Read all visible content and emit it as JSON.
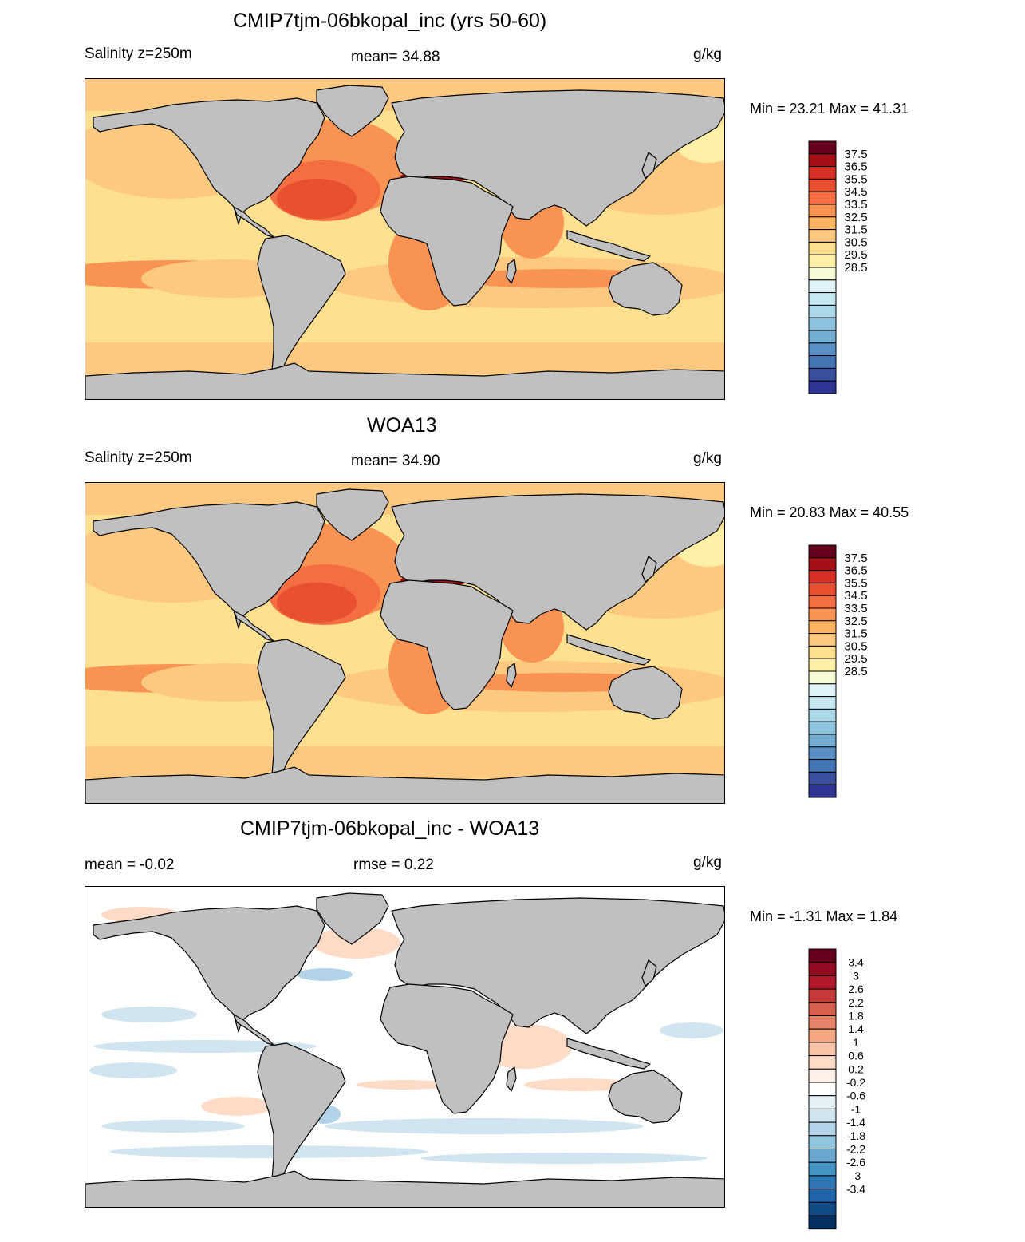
{
  "panels": [
    {
      "title": "CMIP7tjm-06bkopal_inc (yrs 50-60)",
      "left_label": "Salinity z=250m",
      "center_label": "mean=  34.88",
      "right_label": "g/kg",
      "minmax": "Min =  23.21 Max =  41.31",
      "field": "model"
    },
    {
      "title": "WOA13",
      "left_label": "Salinity z=250m",
      "center_label": "mean=  34.90",
      "right_label": "g/kg",
      "minmax": "Min =  20.83 Max =  40.55",
      "field": "obs"
    },
    {
      "title": "CMIP7tjm-06bkopal_inc - WOA13",
      "left_label": "mean =  -0.02",
      "center_label": "rmse =   0.22",
      "right_label": "g/kg",
      "minmax": "Min =  -1.31 Max =   1.84",
      "field": "diff"
    }
  ],
  "colorbars": {
    "salinity": {
      "labels": [
        "37.5",
        "36.5",
        "35.5",
        "34.5",
        "33.5",
        "32.5",
        "31.5",
        "30.5",
        "29.5",
        "28.5"
      ],
      "colors": [
        "#67001f",
        "#a50f15",
        "#d73027",
        "#e8502f",
        "#f46d43",
        "#f99354",
        "#fdb462",
        "#fdc980",
        "#fee090",
        "#fff0a8",
        "#f7fbd8",
        "#e0f3f8",
        "#c6e8f0",
        "#abd9e9",
        "#8cc2dd",
        "#74add1",
        "#5a8fc5",
        "#4575b4",
        "#3b4f9f",
        "#313695"
      ]
    },
    "difference": {
      "labels": [
        "3.4",
        "3",
        "2.6",
        "2.2",
        "1.8",
        "1.4",
        "1",
        "0.6",
        "0.2",
        "-0.2",
        "-0.6",
        "-1",
        "-1.4",
        "-1.8",
        "-2.2",
        "-2.6",
        "-3",
        "-3.4"
      ],
      "colors": [
        "#67001f",
        "#920b23",
        "#b2182b",
        "#c8393a",
        "#d6604d",
        "#e58267",
        "#f4a582",
        "#f8c4a8",
        "#fddbc7",
        "#fef0e8",
        "#ffffff",
        "#e6f1f7",
        "#d1e5f0",
        "#b3d4e8",
        "#92c5de",
        "#6aa8d0",
        "#4393c3",
        "#2f78b5",
        "#2166ac",
        "#134b87",
        "#053061"
      ]
    }
  },
  "map_colors": {
    "land": "#c0c0c0",
    "model": {
      "base": "#fee090",
      "mid": "#fdc980",
      "high": "#f99354",
      "higher": "#f46d43",
      "peak": "#e8502f",
      "med": "#a50f15",
      "arctic": "#fdc980",
      "low": "#fff0a8"
    },
    "obs": {
      "base": "#fee090",
      "mid": "#fdc980",
      "high": "#f99354",
      "higher": "#f46d43",
      "peak": "#e8502f",
      "med": "#a50f15",
      "arctic": "#fdc980",
      "low": "#fff0a8"
    },
    "diff": {
      "base": "#ffffff",
      "pos": "#fddbc7",
      "neg": "#d1e5f0",
      "neg2": "#b3d4e8"
    }
  }
}
